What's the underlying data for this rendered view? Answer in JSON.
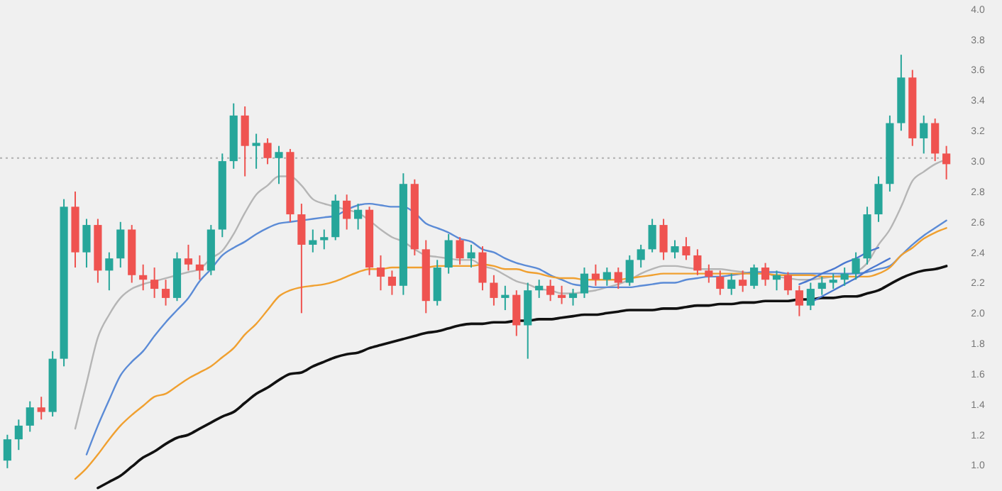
{
  "chart_data": {
    "type": "candlestick",
    "categories": [
      null,
      null,
      null,
      null,
      null,
      null,
      null,
      null,
      null,
      null,
      null,
      null,
      null,
      null,
      null,
      null,
      null,
      null,
      null,
      null,
      null,
      null,
      null,
      null,
      null,
      null,
      null,
      null,
      null,
      null,
      null,
      null,
      null,
      null,
      null,
      null,
      null,
      null,
      null,
      null,
      null,
      null,
      null,
      null,
      null,
      null,
      null,
      null,
      null,
      null,
      null,
      null,
      null,
      null,
      null,
      null,
      null,
      null,
      null,
      null,
      null,
      null,
      null,
      null,
      null,
      null,
      null,
      null,
      null,
      null,
      null,
      null,
      null,
      null,
      null,
      null,
      null,
      null,
      null,
      null,
      null,
      null,
      null,
      null
    ],
    "ohlc": [
      [
        1.03,
        1.2,
        0.98,
        1.17
      ],
      [
        1.17,
        1.3,
        1.1,
        1.26
      ],
      [
        1.26,
        1.42,
        1.22,
        1.38
      ],
      [
        1.38,
        1.45,
        1.3,
        1.35
      ],
      [
        1.35,
        1.75,
        1.32,
        1.7
      ],
      [
        1.7,
        2.75,
        1.65,
        2.7
      ],
      [
        2.7,
        2.8,
        2.3,
        2.4
      ],
      [
        2.4,
        2.62,
        2.3,
        2.58
      ],
      [
        2.58,
        2.62,
        2.2,
        2.28
      ],
      [
        2.28,
        2.4,
        2.15,
        2.36
      ],
      [
        2.36,
        2.6,
        2.3,
        2.55
      ],
      [
        2.55,
        2.58,
        2.2,
        2.25
      ],
      [
        2.25,
        2.32,
        2.15,
        2.22
      ],
      [
        2.22,
        2.3,
        2.1,
        2.16
      ],
      [
        2.16,
        2.22,
        2.05,
        2.1
      ],
      [
        2.1,
        2.4,
        2.08,
        2.36
      ],
      [
        2.36,
        2.45,
        2.28,
        2.32
      ],
      [
        2.32,
        2.38,
        2.22,
        2.28
      ],
      [
        2.28,
        2.58,
        2.25,
        2.55
      ],
      [
        2.55,
        3.05,
        2.5,
        3.0
      ],
      [
        3.0,
        3.38,
        2.95,
        3.3
      ],
      [
        3.3,
        3.36,
        2.9,
        3.1
      ],
      [
        3.1,
        3.18,
        2.95,
        3.12
      ],
      [
        3.12,
        3.15,
        2.98,
        3.02
      ],
      [
        3.02,
        3.1,
        2.85,
        3.06
      ],
      [
        3.06,
        3.08,
        2.6,
        2.65
      ],
      [
        2.65,
        2.72,
        2.0,
        2.45
      ],
      [
        2.45,
        2.55,
        2.4,
        2.48
      ],
      [
        2.48,
        2.55,
        2.42,
        2.5
      ],
      [
        2.5,
        2.78,
        2.48,
        2.74
      ],
      [
        2.74,
        2.78,
        2.55,
        2.62
      ],
      [
        2.62,
        2.72,
        2.55,
        2.68
      ],
      [
        2.68,
        2.7,
        2.25,
        2.3
      ],
      [
        2.3,
        2.38,
        2.15,
        2.24
      ],
      [
        2.24,
        2.28,
        2.12,
        2.18
      ],
      [
        2.18,
        2.92,
        2.12,
        2.85
      ],
      [
        2.85,
        2.88,
        2.38,
        2.42
      ],
      [
        2.42,
        2.48,
        2.0,
        2.08
      ],
      [
        2.08,
        2.35,
        2.05,
        2.3
      ],
      [
        2.3,
        2.52,
        2.26,
        2.48
      ],
      [
        2.48,
        2.5,
        2.32,
        2.36
      ],
      [
        2.36,
        2.45,
        2.3,
        2.4
      ],
      [
        2.4,
        2.44,
        2.15,
        2.2
      ],
      [
        2.2,
        2.25,
        2.05,
        2.1
      ],
      [
        2.1,
        2.18,
        2.02,
        2.12
      ],
      [
        2.12,
        2.15,
        1.85,
        1.92
      ],
      [
        1.92,
        2.2,
        1.7,
        2.15
      ],
      [
        2.15,
        2.22,
        2.1,
        2.18
      ],
      [
        2.18,
        2.22,
        2.08,
        2.12
      ],
      [
        2.12,
        2.18,
        2.06,
        2.1
      ],
      [
        2.1,
        2.16,
        2.05,
        2.13
      ],
      [
        2.13,
        2.3,
        2.1,
        2.26
      ],
      [
        2.26,
        2.32,
        2.18,
        2.22
      ],
      [
        2.22,
        2.3,
        2.18,
        2.27
      ],
      [
        2.27,
        2.3,
        2.16,
        2.2
      ],
      [
        2.2,
        2.38,
        2.18,
        2.35
      ],
      [
        2.35,
        2.45,
        2.3,
        2.42
      ],
      [
        2.42,
        2.62,
        2.4,
        2.58
      ],
      [
        2.58,
        2.62,
        2.35,
        2.4
      ],
      [
        2.4,
        2.48,
        2.36,
        2.44
      ],
      [
        2.44,
        2.5,
        2.35,
        2.38
      ],
      [
        2.38,
        2.42,
        2.25,
        2.28
      ],
      [
        2.28,
        2.32,
        2.2,
        2.24
      ],
      [
        2.24,
        2.28,
        2.12,
        2.16
      ],
      [
        2.16,
        2.26,
        2.12,
        2.22
      ],
      [
        2.22,
        2.28,
        2.14,
        2.18
      ],
      [
        2.18,
        2.32,
        2.16,
        2.3
      ],
      [
        2.3,
        2.33,
        2.18,
        2.22
      ],
      [
        2.22,
        2.28,
        2.15,
        2.25
      ],
      [
        2.25,
        2.27,
        2.12,
        2.15
      ],
      [
        2.15,
        2.18,
        1.98,
        2.05
      ],
      [
        2.05,
        2.2,
        2.02,
        2.16
      ],
      [
        2.16,
        2.24,
        2.12,
        2.2
      ],
      [
        2.2,
        2.26,
        2.16,
        2.22
      ],
      [
        2.22,
        2.3,
        2.18,
        2.26
      ],
      [
        2.26,
        2.4,
        2.22,
        2.36
      ],
      [
        2.36,
        2.7,
        2.32,
        2.65
      ],
      [
        2.65,
        2.9,
        2.6,
        2.85
      ],
      [
        2.85,
        3.3,
        2.8,
        3.25
      ],
      [
        3.25,
        3.7,
        3.2,
        3.55
      ],
      [
        3.55,
        3.6,
        3.1,
        3.15
      ],
      [
        3.15,
        3.3,
        3.05,
        3.25
      ],
      [
        3.25,
        3.28,
        3.0,
        3.05
      ],
      [
        3.05,
        3.1,
        2.88,
        2.98
      ]
    ],
    "colors": [
      "#26a69a",
      "#26a69a",
      "#26a69a",
      "#ef5350",
      "#26a69a",
      "#26a69a",
      "#ef5350",
      "#26a69a",
      "#ef5350",
      "#26a69a",
      "#26a69a",
      "#ef5350",
      "#ef5350",
      "#ef5350",
      "#ef5350",
      "#26a69a",
      "#ef5350",
      "#ef5350",
      "#26a69a",
      "#26a69a",
      "#26a69a",
      "#ef5350",
      "#26a69a",
      "#ef5350",
      "#26a69a",
      "#ef5350",
      "#ef5350",
      "#26a69a",
      "#26a69a",
      "#26a69a",
      "#ef5350",
      "#26a69a",
      "#ef5350",
      "#ef5350",
      "#ef5350",
      "#26a69a",
      "#ef5350",
      "#ef5350",
      "#26a69a",
      "#26a69a",
      "#ef5350",
      "#26a69a",
      "#ef5350",
      "#ef5350",
      "#26a69a",
      "#ef5350",
      "#26a69a",
      "#26a69a",
      "#ef5350",
      "#ef5350",
      "#26a69a",
      "#26a69a",
      "#ef5350",
      "#26a69a",
      "#ef5350",
      "#26a69a",
      "#26a69a",
      "#26a69a",
      "#ef5350",
      "#26a69a",
      "#ef5350",
      "#ef5350",
      "#ef5350",
      "#ef5350",
      "#26a69a",
      "#ef5350",
      "#26a69a",
      "#ef5350",
      "#26a69a",
      "#ef5350",
      "#ef5350",
      "#26a69a",
      "#26a69a",
      "#26a69a",
      "#26a69a",
      "#26a69a",
      "#26a69a",
      "#26a69a",
      "#26a69a",
      "#26a69a",
      "#ef5350",
      "#26a69a",
      "#ef5350",
      "#ef5350"
    ],
    "series": [
      {
        "type": "line",
        "color": "#b5b5b5",
        "values": [
          null,
          null,
          null,
          null,
          null,
          null,
          1.24,
          1.54,
          1.84,
          1.99,
          2.1,
          2.16,
          2.19,
          2.21,
          2.23,
          2.25,
          2.27,
          2.29,
          2.36,
          2.41,
          2.52,
          2.66,
          2.78,
          2.84,
          2.9,
          2.9,
          2.84,
          2.75,
          2.72,
          2.7,
          2.68,
          2.66,
          2.61,
          2.55,
          2.5,
          2.47,
          2.42,
          2.38,
          2.37,
          2.36,
          2.35,
          2.35,
          2.31,
          2.29,
          2.25,
          2.21,
          2.19,
          2.16,
          2.15,
          2.13,
          2.13,
          2.14,
          2.15,
          2.17,
          2.19,
          2.22,
          2.26,
          2.29,
          2.31,
          2.31,
          2.3,
          2.29,
          2.29,
          2.29,
          2.28,
          2.27,
          2.26,
          2.26,
          2.24,
          2.23,
          2.22,
          2.22,
          2.23,
          2.24,
          2.25,
          2.27,
          2.33,
          2.45,
          2.55,
          2.7,
          2.87,
          2.93,
          2.98,
          3.01
        ]
      },
      {
        "type": "line",
        "color": "#5b8bd6",
        "values": [
          null,
          null,
          null,
          null,
          null,
          null,
          null,
          1.07,
          1.26,
          1.43,
          1.59,
          1.68,
          1.75,
          1.85,
          1.94,
          2.02,
          2.1,
          2.21,
          2.29,
          2.38,
          2.43,
          2.47,
          2.52,
          2.56,
          2.59,
          2.6,
          2.61,
          2.62,
          2.63,
          2.64,
          2.68,
          2.71,
          2.72,
          2.71,
          2.7,
          2.7,
          2.66,
          2.59,
          2.56,
          2.53,
          2.49,
          2.47,
          2.42,
          2.4,
          2.36,
          2.33,
          2.31,
          2.29,
          2.25,
          2.22,
          2.19,
          2.18,
          2.17,
          2.17,
          2.17,
          2.17,
          2.18,
          2.19,
          2.2,
          2.2,
          2.22,
          2.23,
          2.24,
          2.24,
          2.25,
          2.26,
          2.27,
          2.27,
          2.27,
          2.26,
          2.26,
          2.26,
          2.26,
          2.26,
          2.26,
          2.26,
          2.27,
          2.29,
          2.31,
          2.38,
          2.45,
          2.51,
          2.56,
          2.61
        ]
      },
      {
        "type": "line",
        "color": "#f0a030",
        "values": [
          null,
          null,
          null,
          null,
          null,
          null,
          0.91,
          0.98,
          1.07,
          1.17,
          1.26,
          1.33,
          1.39,
          1.45,
          1.47,
          1.52,
          1.57,
          1.61,
          1.65,
          1.71,
          1.77,
          1.86,
          1.93,
          2.02,
          2.11,
          2.15,
          2.17,
          2.18,
          2.19,
          2.21,
          2.24,
          2.27,
          2.29,
          2.29,
          2.3,
          2.3,
          2.3,
          2.3,
          2.31,
          2.31,
          2.31,
          2.31,
          2.32,
          2.31,
          2.29,
          2.29,
          2.27,
          2.26,
          2.24,
          2.23,
          2.23,
          2.22,
          2.22,
          2.22,
          2.22,
          2.23,
          2.24,
          2.25,
          2.26,
          2.26,
          2.26,
          2.26,
          2.26,
          2.26,
          2.26,
          2.26,
          2.26,
          2.26,
          2.25,
          2.25,
          2.25,
          2.25,
          2.24,
          2.24,
          2.24,
          2.24,
          2.24,
          2.26,
          2.3,
          2.38,
          2.43,
          2.49,
          2.53,
          2.56
        ]
      },
      {
        "type": "line",
        "color": "#111111",
        "values": [
          null,
          null,
          null,
          null,
          null,
          null,
          null,
          null,
          0.85,
          0.89,
          0.93,
          0.99,
          1.05,
          1.09,
          1.14,
          1.18,
          1.2,
          1.24,
          1.28,
          1.32,
          1.35,
          1.41,
          1.47,
          1.51,
          1.56,
          1.6,
          1.61,
          1.65,
          1.68,
          1.71,
          1.73,
          1.74,
          1.77,
          1.79,
          1.81,
          1.83,
          1.85,
          1.87,
          1.88,
          1.9,
          1.92,
          1.93,
          1.93,
          1.94,
          1.94,
          1.95,
          1.95,
          1.96,
          1.96,
          1.97,
          1.98,
          1.99,
          1.99,
          2.0,
          2.01,
          2.02,
          2.02,
          2.02,
          2.03,
          2.03,
          2.04,
          2.05,
          2.05,
          2.06,
          2.06,
          2.07,
          2.07,
          2.08,
          2.08,
          2.08,
          2.09,
          2.09,
          2.1,
          2.1,
          2.11,
          2.11,
          2.13,
          2.15,
          2.19,
          2.23,
          2.26,
          2.28,
          2.29,
          2.31
        ]
      },
      {
        "type": "line",
        "color": "#4a78d0",
        "values": [
          null,
          null,
          null,
          null,
          null,
          null,
          null,
          null,
          null,
          null,
          null,
          null,
          null,
          null,
          null,
          null,
          null,
          null,
          null,
          null,
          null,
          null,
          null,
          null,
          null,
          null,
          null,
          null,
          null,
          null,
          null,
          null,
          null,
          null,
          null,
          null,
          null,
          null,
          null,
          null,
          null,
          null,
          null,
          null,
          null,
          null,
          null,
          null,
          null,
          null,
          null,
          null,
          null,
          null,
          null,
          null,
          null,
          null,
          null,
          null,
          null,
          null,
          null,
          null,
          null,
          null,
          null,
          null,
          null,
          null,
          2.19,
          2.22,
          2.26,
          2.29,
          2.33,
          2.36,
          2.4,
          2.43,
          null,
          null,
          null,
          null,
          null,
          null
        ]
      },
      {
        "type": "line",
        "color": "#4a78d0",
        "values": [
          null,
          null,
          null,
          null,
          null,
          null,
          null,
          null,
          null,
          null,
          null,
          null,
          null,
          null,
          null,
          null,
          null,
          null,
          null,
          null,
          null,
          null,
          null,
          null,
          null,
          null,
          null,
          null,
          null,
          null,
          null,
          null,
          null,
          null,
          null,
          null,
          null,
          null,
          null,
          null,
          null,
          null,
          null,
          null,
          null,
          null,
          null,
          null,
          null,
          null,
          null,
          null,
          null,
          null,
          null,
          null,
          null,
          null,
          null,
          null,
          null,
          null,
          null,
          null,
          null,
          null,
          null,
          null,
          null,
          null,
          null,
          2.07,
          2.11,
          2.15,
          2.19,
          2.23,
          2.28,
          2.32,
          2.36,
          null,
          null,
          null,
          null,
          null
        ]
      }
    ],
    "ylim": [
      0.83,
      4.06
    ],
    "yticks": [
      {
        "value": 1.0,
        "label": "1.0"
      },
      {
        "value": 1.2,
        "label": "1.2"
      },
      {
        "value": 1.4,
        "label": "1.4"
      },
      {
        "value": 1.6,
        "label": "1.6"
      },
      {
        "value": 1.8,
        "label": "1.8"
      },
      {
        "value": 2.0,
        "label": "2.0"
      },
      {
        "value": 2.2,
        "label": "2.2"
      },
      {
        "value": 2.4,
        "label": "2.4"
      },
      {
        "value": 2.6,
        "label": "2.6"
      },
      {
        "value": 2.8,
        "label": "2.8"
      },
      {
        "value": 3.0,
        "label": "3.0"
      },
      {
        "value": 3.2,
        "label": "3.2"
      },
      {
        "value": 3.4,
        "label": "3.4"
      },
      {
        "value": 3.6,
        "label": "3.6"
      },
      {
        "value": 3.8,
        "label": "3.8"
      },
      {
        "value": 4.0,
        "label": "4.0"
      }
    ],
    "ref_lines": [
      {
        "axis": "y",
        "value": 3.02,
        "color": "#b0b0b0",
        "line_style": "dotted"
      }
    ],
    "tick_labels": "y",
    "grid": false,
    "line_style": "solid"
  }
}
